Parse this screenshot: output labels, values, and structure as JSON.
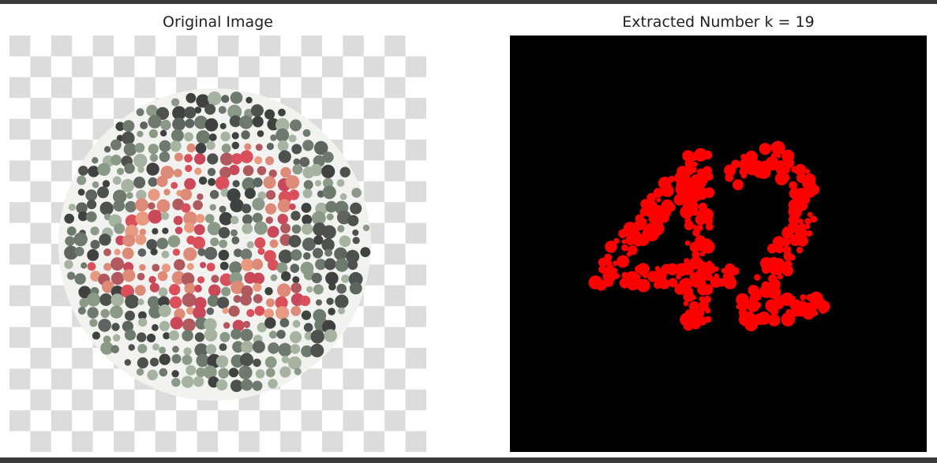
{
  "panels": [
    {
      "title": "Original Image"
    },
    {
      "title": "Extracted Number k = 19"
    }
  ]
}
